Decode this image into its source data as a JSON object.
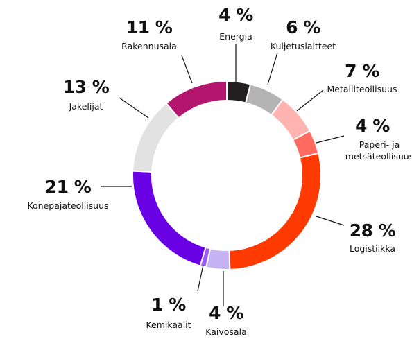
{
  "chart_data": {
    "type": "donut",
    "categories": [
      "Energia",
      "Kuljetuslaitteet",
      "Metalliteollisuus",
      "Paperi- ja metsäteollisuus",
      "Logistiikka",
      "Kaivosala",
      "Kemikaalit",
      "Konepajateollisuus",
      "Jakelijat",
      "Rakennusala"
    ],
    "values": [
      4,
      6,
      7,
      4,
      28,
      4,
      1,
      21,
      13,
      11
    ],
    "value_labels": [
      "4 %",
      "6 %",
      "7 %",
      "4 %",
      "28 %",
      "4 %",
      "1 %",
      "21 %",
      "13 %",
      "11 %"
    ],
    "colors": [
      "#231f20",
      "#b4b4b4",
      "#ffb4b2",
      "#ff6b61",
      "#ff3a00",
      "#c6b3f3",
      "#9b59f5",
      "#6a00e4",
      "#e2e2e2",
      "#b3156f"
    ]
  }
}
